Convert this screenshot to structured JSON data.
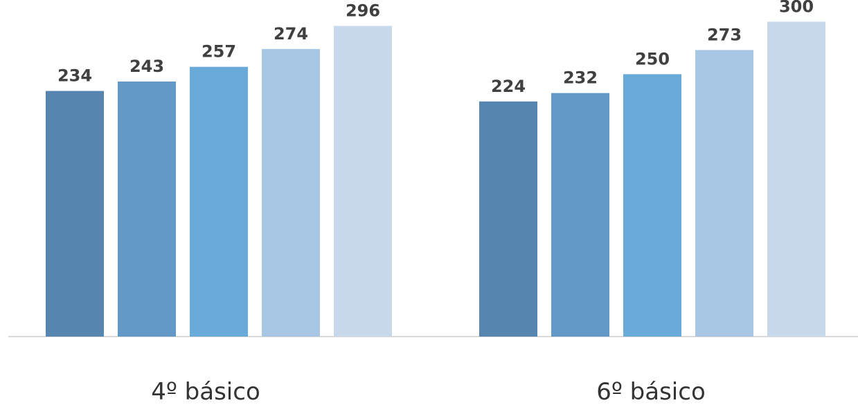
{
  "chart_data": {
    "type": "bar",
    "categories": [
      "4º básico",
      "6º básico"
    ],
    "series": [
      {
        "values": [
          234,
          224
        ]
      },
      {
        "values": [
          243,
          232
        ]
      },
      {
        "values": [
          257,
          250
        ]
      },
      {
        "values": [
          274,
          273
        ]
      },
      {
        "values": [
          296,
          300
        ]
      }
    ],
    "ylim": [
      0,
      320
    ],
    "grid": false,
    "legend": "none",
    "colors": [
      "#5686b0",
      "#6399c7",
      "#6aaad9",
      "#a8c7e4",
      "#c9d9ec"
    ],
    "baseline_color": "#d9d9d9"
  }
}
